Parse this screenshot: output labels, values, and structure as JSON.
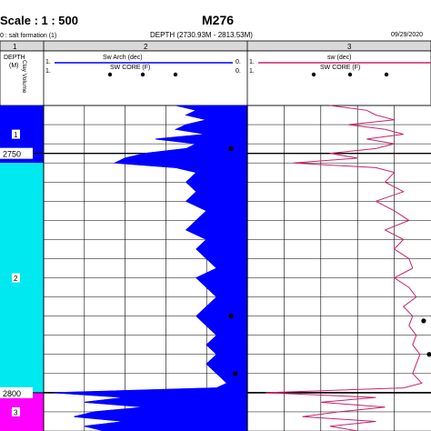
{
  "header": {
    "scale": "Scale : 1 : 500",
    "well": "M276",
    "subtitle_left": "0 : salt formation (1)",
    "depth_range": "DEPTH (2730.93M - 2813.53M)",
    "date": "09/29/2020"
  },
  "tracks": [
    {
      "num": "1",
      "label_lines": [
        "DEPTH",
        "(M)"
      ],
      "rot_label": "Clay Volume"
    },
    {
      "num": "2",
      "curve": "Sw Arch (dec)",
      "core": "SW CORE (F)",
      "left": "1.",
      "right": "0."
    },
    {
      "num": "3",
      "curve": "sw (dec)",
      "core": "SW CORE (F)",
      "left": "1.",
      "right": "0."
    }
  ],
  "colors": {
    "zone1": "#0000ff",
    "zone2": "#00e8f0",
    "zone3": "#ff00ff",
    "sw_arch": "#0000ff",
    "sw": "#c8246e",
    "core": "#000000"
  },
  "chart_data": {
    "type": "well-log",
    "title": "M276",
    "y_axis": {
      "label": "DEPTH (M)",
      "ticks": [
        2750,
        2800
      ],
      "range": [
        2740,
        2808
      ]
    },
    "zones": [
      {
        "name": "1",
        "top": 2740,
        "bottom": 2752
      },
      {
        "name": "2",
        "top": 2752,
        "bottom": 2800
      },
      {
        "name": "3",
        "top": 2800,
        "bottom": 2808
      }
    ],
    "track2": {
      "name": "Sw Arch (dec)",
      "xlim": [
        1,
        0
      ],
      "depths": [
        2740,
        2741,
        2742,
        2743,
        2744,
        2745,
        2746,
        2747,
        2748,
        2749,
        2750,
        2751,
        2752,
        2753,
        2754,
        2756,
        2758,
        2760,
        2762,
        2764,
        2766,
        2768,
        2770,
        2772,
        2774,
        2776,
        2778,
        2780,
        2782,
        2784,
        2786,
        2788,
        2790,
        2792,
        2794,
        2796,
        2798,
        2799,
        2800,
        2801,
        2802,
        2803,
        2804,
        2805,
        2806,
        2807,
        2808
      ],
      "values": [
        0.35,
        0.25,
        0.3,
        0.2,
        0.3,
        0.35,
        0.2,
        0.45,
        0.25,
        0.3,
        0.5,
        0.6,
        0.65,
        0.35,
        0.25,
        0.3,
        0.25,
        0.3,
        0.2,
        0.25,
        0.3,
        0.2,
        0.25,
        0.2,
        0.15,
        0.25,
        0.2,
        0.15,
        0.2,
        0.25,
        0.2,
        0.15,
        0.2,
        0.15,
        0.2,
        0.15,
        0.1,
        0.15,
        0.95,
        0.6,
        0.8,
        0.5,
        0.75,
        0.85,
        0.6,
        0.8,
        0.7
      ],
      "core_points": [
        {
          "depth": 2749,
          "value": 0.08
        },
        {
          "depth": 2784,
          "value": 0.08
        },
        {
          "depth": 2796,
          "value": 0.06
        }
      ]
    },
    "track3": {
      "name": "sw (dec)",
      "xlim": [
        1,
        0
      ],
      "depths": [
        2740,
        2741,
        2742,
        2743,
        2744,
        2745,
        2746,
        2747,
        2748,
        2749,
        2750,
        2751,
        2752,
        2753,
        2754,
        2756,
        2758,
        2760,
        2762,
        2764,
        2766,
        2768,
        2770,
        2772,
        2774,
        2776,
        2778,
        2780,
        2782,
        2784,
        2786,
        2788,
        2790,
        2792,
        2794,
        2796,
        2798,
        2799,
        2800,
        2801,
        2802,
        2803,
        2804,
        2805,
        2806,
        2807,
        2808
      ],
      "values": [
        0.55,
        0.35,
        0.3,
        0.2,
        0.45,
        0.25,
        0.15,
        0.35,
        0.2,
        0.3,
        0.55,
        0.4,
        0.75,
        0.3,
        0.2,
        0.25,
        0.15,
        0.3,
        0.2,
        0.12,
        0.25,
        0.15,
        0.2,
        0.12,
        0.1,
        0.2,
        0.12,
        0.08,
        0.15,
        0.1,
        0.12,
        0.08,
        0.1,
        0.06,
        0.08,
        0.1,
        0.05,
        0.15,
        0.9,
        0.3,
        0.6,
        0.25,
        0.5,
        0.7,
        0.3,
        0.55,
        0.4
      ],
      "core_points": [
        {
          "depth": 2785,
          "value": 0.04
        },
        {
          "depth": 2792,
          "value": 0.01
        }
      ]
    }
  }
}
